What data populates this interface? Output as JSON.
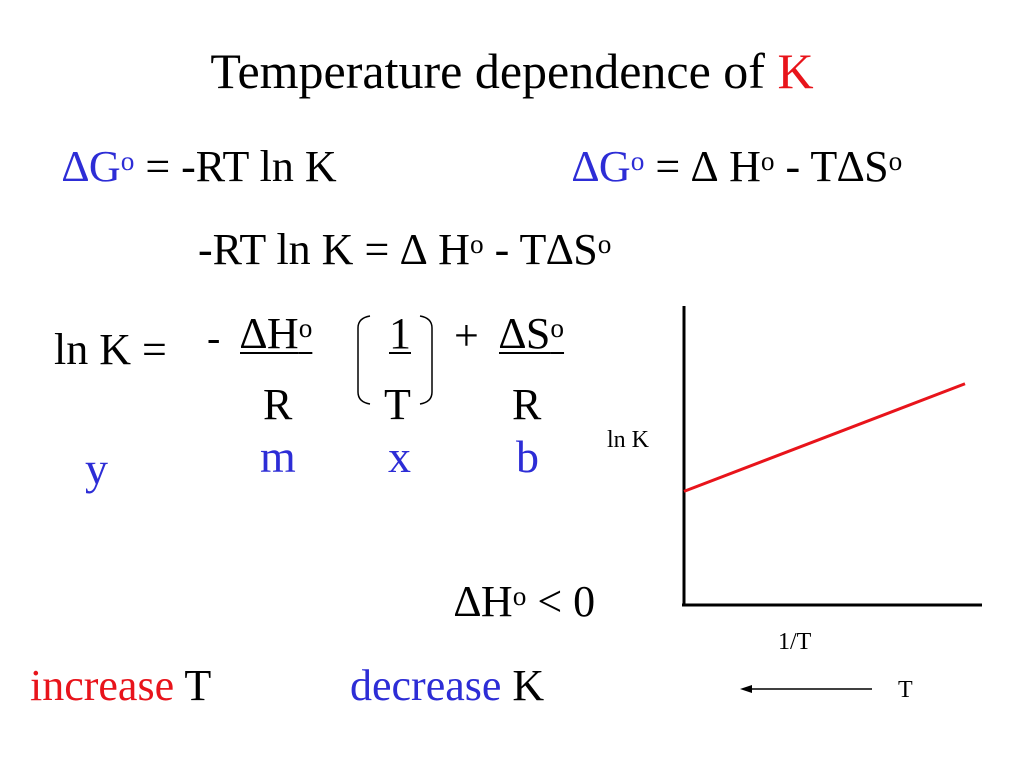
{
  "title": {
    "text": "Temperature dependence of ",
    "k": "K"
  },
  "eq1": {
    "delta": "∆",
    "g": "G",
    "o": "o",
    "rest": " = -RT ln K"
  },
  "eq2": {
    "delta": "∆",
    "g": "G",
    "o": "o",
    "mid": " = ∆ H",
    "o2": "o",
    "tail": " - T∆S",
    "o3": "o"
  },
  "eq3": {
    "lhs": "-RT ln K = ∆ H",
    "o": "o",
    "tail": " - T∆S",
    "o2": "o"
  },
  "eq4": {
    "lnk": "ln K =",
    "minus": "-",
    "dh": "∆H",
    "dh_o": "o",
    "one": "1",
    "plus": "+",
    "ds": "∆S",
    "ds_o": "o",
    "r1": "R",
    "t": "T",
    "r2": "R"
  },
  "labels": {
    "y": "y",
    "m": "m",
    "x": "x",
    "b": "b"
  },
  "graph": {
    "ylabel": "ln K",
    "xlabel": "1/T",
    "arrow_label": "T",
    "line_color": "#e8141b",
    "line": {
      "start_y_fraction": 0.38,
      "end_y_fraction": 0.74
    }
  },
  "condition": {
    "dh": "∆H",
    "o": "o",
    "rel": " < 0"
  },
  "bottom": {
    "increase": "increase",
    "t": "T",
    "decrease": "decrease",
    "k": "K"
  },
  "colors": {
    "blue": "#2d2dd6",
    "red": "#e8141b"
  }
}
